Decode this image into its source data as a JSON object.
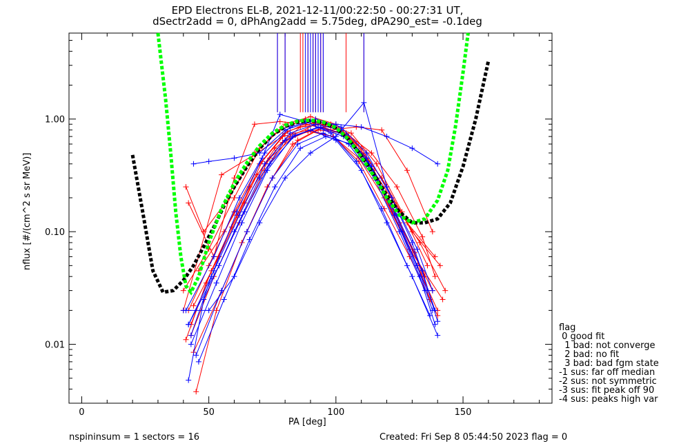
{
  "title": {
    "line1": "EPD Electrons EL-B, 2021-12-11/00:22:50 - 00:27:31 UT,",
    "line2": "dSectr2add = 0, dPhAng2add = 5.75deg, dPA290_est=  -0.1deg"
  },
  "footer": {
    "left": "nspininsum =  1  sectors = 16",
    "right": "Created: Fri Sep  8 05:44:50 2023   flag = 0"
  },
  "legend": {
    "title": "flag",
    "entries": [
      " 0 good fit",
      "  1 bad: not converge",
      "  2 bad: no fit",
      "  3 bad: bad fgm state",
      "-1 sus: far off median",
      "-2 sus: not symmetric",
      "-3 sus: fit peak off 90",
      "-4 sus: peaks high var"
    ]
  },
  "colors": {
    "red": "#ff0000",
    "blue": "#0000ff",
    "green": "#00ff00",
    "black": "#000000"
  },
  "chart_data": {
    "type": "line",
    "xlabel": "PA [deg]",
    "ylabel": "nflux [#/(cm^2 s sr MeV)]",
    "xlim": [
      -5,
      185
    ],
    "ylim": [
      0.003,
      5.8
    ],
    "yscale": "log",
    "xticks": [
      0,
      50,
      100,
      150
    ],
    "xtick_labels": [
      "0",
      "50",
      "100",
      "150"
    ],
    "yticks": [
      0.01,
      0.1,
      1.0
    ],
    "ytick_labels": [
      "0.01",
      "0.10",
      "1.00"
    ],
    "fit_curves": [
      {
        "color": "black",
        "style": "dashed",
        "x": [
          20,
          24,
          28,
          32,
          36,
          40,
          44,
          48,
          52,
          56,
          60,
          65,
          70,
          75,
          80,
          85,
          90,
          95,
          100,
          105,
          110,
          115,
          120,
          125,
          130,
          135,
          140,
          145,
          150,
          155,
          160
        ],
        "y": [
          0.48,
          0.15,
          0.045,
          0.029,
          0.03,
          0.037,
          0.05,
          0.074,
          0.11,
          0.17,
          0.25,
          0.38,
          0.55,
          0.72,
          0.86,
          0.94,
          0.97,
          0.93,
          0.83,
          0.66,
          0.47,
          0.32,
          0.21,
          0.15,
          0.12,
          0.12,
          0.13,
          0.18,
          0.38,
          1.0,
          3.3
        ]
      },
      {
        "color": "green",
        "style": "dashed",
        "x": [
          30,
          33,
          35,
          37,
          39,
          41,
          43,
          46,
          50,
          55,
          60,
          65,
          70,
          75,
          80,
          85,
          90,
          95,
          100,
          105,
          110,
          115,
          120,
          125,
          130,
          135,
          140,
          144,
          147,
          150,
          152
        ],
        "y": [
          5.8,
          1.5,
          0.5,
          0.15,
          0.06,
          0.033,
          0.029,
          0.04,
          0.08,
          0.16,
          0.27,
          0.41,
          0.58,
          0.75,
          0.88,
          0.96,
          0.98,
          0.94,
          0.84,
          0.66,
          0.46,
          0.31,
          0.2,
          0.14,
          0.12,
          0.13,
          0.19,
          0.35,
          0.85,
          2.6,
          5.8
        ]
      }
    ],
    "series": [
      {
        "color": "red",
        "x": [
          42,
          50,
          60,
          70,
          80,
          90,
          100,
          110,
          120,
          130,
          138
        ],
        "y": [
          0.02,
          0.05,
          0.15,
          0.4,
          0.75,
          0.95,
          0.85,
          0.5,
          0.2,
          0.07,
          0.03
        ]
      },
      {
        "color": "red",
        "x": [
          43,
          52,
          62,
          72,
          82,
          92,
          102,
          112,
          122,
          132,
          140
        ],
        "y": [
          0.012,
          0.04,
          0.12,
          0.35,
          0.7,
          0.9,
          0.8,
          0.45,
          0.15,
          0.05,
          0.02
        ]
      },
      {
        "color": "red",
        "x": [
          41,
          48,
          58,
          68,
          78,
          88,
          98,
          108,
          118,
          128,
          139
        ],
        "y": [
          0.25,
          0.1,
          0.2,
          0.5,
          0.8,
          1.0,
          0.9,
          0.6,
          0.3,
          0.12,
          0.06
        ]
      },
      {
        "color": "red",
        "x": [
          44,
          55,
          65,
          75,
          85,
          95,
          105,
          115,
          125,
          135
        ],
        "y": [
          0.0085,
          0.03,
          0.1,
          0.3,
          0.65,
          0.85,
          0.7,
          0.35,
          0.12,
          0.04
        ]
      },
      {
        "color": "red",
        "x": [
          40,
          50,
          60,
          70,
          80,
          90,
          100,
          110,
          120,
          130,
          141
        ],
        "y": [
          0.03,
          0.07,
          0.2,
          0.55,
          0.9,
          1.05,
          0.9,
          0.55,
          0.25,
          0.1,
          0.05
        ]
      },
      {
        "color": "red",
        "x": [
          45,
          53,
          63,
          73,
          83,
          93,
          103,
          113,
          123,
          133,
          143
        ],
        "y": [
          0.0038,
          0.02,
          0.08,
          0.25,
          0.6,
          0.8,
          0.75,
          0.4,
          0.18,
          0.08,
          0.03
        ]
      },
      {
        "color": "red",
        "x": [
          42,
          52,
          60,
          68,
          78,
          88,
          98,
          108,
          118,
          128,
          138
        ],
        "y": [
          0.18,
          0.06,
          0.3,
          0.9,
          0.95,
          0.9,
          0.8,
          0.85,
          0.8,
          0.35,
          0.1
        ]
      },
      {
        "color": "red",
        "x": [
          43,
          51,
          61,
          71,
          81,
          91,
          101,
          111,
          121,
          131,
          137
        ],
        "y": [
          0.015,
          0.045,
          0.14,
          0.42,
          0.78,
          0.92,
          0.82,
          0.48,
          0.19,
          0.065,
          0.025
        ]
      },
      {
        "color": "red",
        "x": [
          44,
          54,
          64,
          74,
          84,
          94,
          104,
          114,
          124,
          134,
          139
        ],
        "y": [
          0.022,
          0.06,
          0.18,
          0.45,
          0.72,
          0.82,
          0.75,
          0.5,
          0.25,
          0.09,
          0.04
        ]
      },
      {
        "color": "red",
        "x": [
          41,
          49,
          59,
          69,
          79,
          89,
          99,
          109,
          119,
          129,
          140
        ],
        "y": [
          0.011,
          0.035,
          0.11,
          0.32,
          0.62,
          0.78,
          0.7,
          0.42,
          0.16,
          0.06,
          0.018
        ]
      },
      {
        "color": "red",
        "x": [
          46,
          56,
          66,
          76,
          86,
          96,
          106,
          116,
          126,
          136
        ],
        "y": [
          0.045,
          0.1,
          0.25,
          0.55,
          0.85,
          0.9,
          0.75,
          0.4,
          0.15,
          0.05
        ]
      },
      {
        "color": "red",
        "x": [
          40,
          55,
          69,
          79,
          89,
          99,
          109,
          119,
          129,
          142
        ],
        "y": [
          0.02,
          0.32,
          0.5,
          0.7,
          0.8,
          0.7,
          0.45,
          0.2,
          0.07,
          0.025
        ]
      },
      {
        "color": "blue",
        "x": [
          42,
          52,
          62,
          72,
          82,
          92,
          102,
          112,
          122,
          132,
          138
        ],
        "y": [
          0.015,
          0.045,
          0.14,
          0.4,
          0.75,
          0.9,
          0.8,
          0.45,
          0.17,
          0.05,
          0.02
        ]
      },
      {
        "color": "blue",
        "x": [
          43,
          53,
          63,
          73,
          83,
          93,
          103,
          113,
          123,
          133,
          139
        ],
        "y": [
          0.01,
          0.035,
          0.12,
          0.35,
          0.7,
          0.85,
          0.7,
          0.4,
          0.14,
          0.04,
          0.015
        ]
      },
      {
        "color": "blue",
        "x": [
          42,
          48,
          60,
          70,
          80,
          90,
          100,
          110,
          120,
          130,
          140
        ],
        "y": [
          0.0048,
          0.025,
          0.1,
          0.3,
          0.65,
          0.8,
          0.65,
          0.35,
          0.12,
          0.04,
          0.012
        ]
      },
      {
        "color": "blue",
        "x": [
          44,
          50,
          60,
          70,
          80,
          90,
          100,
          110,
          120,
          130,
          140
        ],
        "y": [
          0.4,
          0.42,
          0.45,
          0.5,
          0.8,
          0.95,
          0.9,
          0.85,
          0.7,
          0.55,
          0.4
        ]
      },
      {
        "color": "blue",
        "x": [
          41,
          52,
          62,
          72,
          82,
          92,
          102,
          112,
          122,
          132,
          138
        ],
        "y": [
          0.02,
          0.06,
          0.2,
          0.5,
          0.85,
          1.0,
          0.85,
          0.5,
          0.2,
          0.07,
          0.03
        ]
      },
      {
        "color": "blue",
        "x": [
          45,
          55,
          65,
          75,
          85,
          95,
          105,
          115,
          125,
          135
        ],
        "y": [
          0.008,
          0.03,
          0.1,
          0.3,
          0.6,
          0.75,
          0.6,
          0.3,
          0.1,
          0.03
        ]
      },
      {
        "color": "blue",
        "x": [
          43,
          51,
          61,
          71,
          78,
          88,
          98,
          108,
          118,
          128,
          137
        ],
        "y": [
          0.012,
          0.04,
          0.15,
          0.45,
          1.1,
          0.95,
          0.75,
          0.42,
          0.16,
          0.05,
          0.018
        ]
      },
      {
        "color": "blue",
        "x": [
          40,
          50,
          60,
          70,
          80,
          90,
          100,
          111,
          120,
          130,
          139
        ],
        "y": [
          0.02,
          0.02,
          0.04,
          0.12,
          0.3,
          0.5,
          0.7,
          1.4,
          0.25,
          0.08,
          0.02
        ]
      },
      {
        "color": "blue",
        "x": [
          42,
          54,
          64,
          74,
          84,
          94,
          104,
          114,
          124,
          134,
          140
        ],
        "y": [
          0.015,
          0.05,
          0.15,
          0.4,
          0.72,
          0.85,
          0.72,
          0.38,
          0.14,
          0.045,
          0.016
        ]
      },
      {
        "color": "blue",
        "x": [
          46,
          56,
          66,
          76,
          86,
          96,
          106,
          116,
          126,
          136
        ],
        "y": [
          0.007,
          0.025,
          0.085,
          0.25,
          0.55,
          0.7,
          0.6,
          0.3,
          0.1,
          0.03
        ]
      }
    ],
    "vertical_lines": [
      {
        "color": "red",
        "x": [
          77,
          80,
          86,
          87,
          89,
          90,
          91,
          92,
          94,
          95,
          104,
          111
        ]
      },
      {
        "color": "blue",
        "x": [
          77,
          80,
          88,
          89,
          90,
          91,
          92,
          93,
          94,
          95,
          111
        ]
      }
    ]
  }
}
